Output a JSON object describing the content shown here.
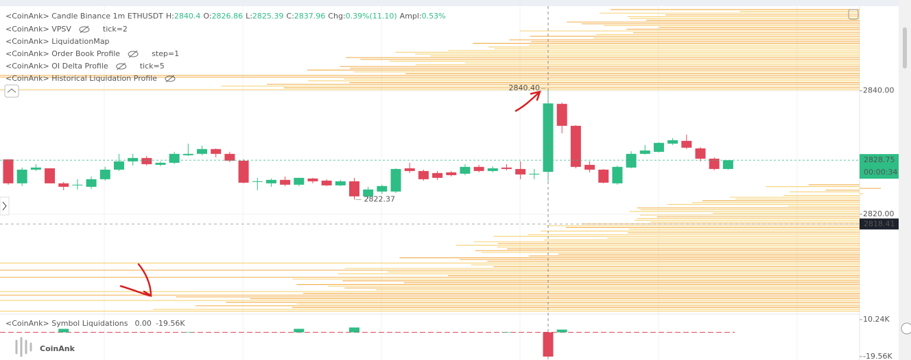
{
  "chart_data": [
    {
      "type": "candlestick",
      "header": {
        "title": "<CoinAnk> Candle  Binance 1m ETHUSDT",
        "fields": [
          [
            "H:",
            "2840.4"
          ],
          [
            "O:",
            "2826.86"
          ],
          [
            "L:",
            "2825.39"
          ],
          [
            "C:",
            "2837.96"
          ],
          [
            "Chg:",
            "0.39%(11.10)"
          ],
          [
            "Ampl:",
            "0.53%"
          ]
        ]
      },
      "indicators": [
        {
          "name": "<CoinAnk> VPSV",
          "hidden": true,
          "param": "tick=2"
        },
        {
          "name": "<CoinAnk> LiquidationMap"
        },
        {
          "name": "<CoinAnk> Order Book Profile",
          "hidden": true,
          "param": "step=1"
        },
        {
          "name": "<CoinAnk> OI Delta Profile",
          "hidden": true,
          "param": "tick=5"
        },
        {
          "name": "<CoinAnk> Historical Liquidation Profile",
          "hidden": true
        }
      ],
      "open": [
        2828.89,
        2825.0,
        2827.22,
        2827.44,
        2825.0,
        2824.67,
        2824.44,
        2825.67,
        2827.22,
        2828.56,
        2829.11,
        2828.0,
        2828.33,
        2829.56,
        2829.78,
        2830.56,
        2829.78,
        2828.67,
        2825.22,
        2825.0,
        2825.56,
        2824.78,
        2825.78,
        2825.44,
        2824.67,
        2825.33,
        2822.89,
        2823.67,
        2823.67,
        2827.44,
        2827.0,
        2826.67,
        2826.78,
        2826.56,
        2827.67,
        2827.0,
        2827.56,
        2827.33,
        2826.44,
        2826.86,
        2837.89,
        2834.33,
        2828.0,
        2827.22,
        2825.0,
        2827.56,
        2829.78,
        2830.11,
        2831.44,
        2831.89,
        2830.67,
        2829.0,
        2827.33
      ],
      "high": [
        2828.89,
        2827.56,
        2828.11,
        2827.44,
        2825.22,
        2825.67,
        2826.11,
        2827.67,
        2829.78,
        2829.78,
        2829.44,
        2828.56,
        2830.11,
        2831.44,
        2831.11,
        2830.67,
        2830.11,
        2828.89,
        2825.89,
        2825.78,
        2826.11,
        2825.89,
        2825.89,
        2825.67,
        2825.56,
        2825.89,
        2824.44,
        2824.78,
        2827.44,
        2828.33,
        2827.22,
        2827.0,
        2827.0,
        2828.11,
        2828.0,
        2827.78,
        2828.11,
        2828.56,
        2827.33,
        2840.4,
        2838.11,
        2834.44,
        2828.56,
        2827.33,
        2827.89,
        2830.22,
        2831.22,
        2831.67,
        2832.33,
        2832.89,
        2830.89,
        2829.22,
        2828.75
      ],
      "low": [
        2824.78,
        2824.56,
        2827.0,
        2825.0,
        2823.89,
        2824.0,
        2824.11,
        2825.44,
        2827.0,
        2827.89,
        2827.89,
        2827.78,
        2828.11,
        2829.44,
        2829.56,
        2829.22,
        2828.44,
        2825.0,
        2823.89,
        2824.44,
        2824.56,
        2824.56,
        2825.0,
        2824.56,
        2824.56,
        2822.37,
        2822.56,
        2823.33,
        2823.44,
        2826.67,
        2825.44,
        2825.56,
        2826.11,
        2826.33,
        2826.78,
        2826.78,
        2827.11,
        2825.67,
        2825.67,
        2825.39,
        2833.11,
        2827.44,
        2826.78,
        2825.0,
        2824.78,
        2827.44,
        2829.67,
        2830.0,
        2831.22,
        2830.56,
        2828.56,
        2827.11,
        2827.22
      ],
      "close": [
        2825.0,
        2827.22,
        2827.56,
        2825.0,
        2824.44,
        2824.78,
        2825.67,
        2827.22,
        2828.56,
        2829.11,
        2828.11,
        2828.33,
        2829.78,
        2829.78,
        2830.56,
        2829.78,
        2828.67,
        2825.11,
        2825.33,
        2825.56,
        2824.78,
        2825.89,
        2825.33,
        2824.67,
        2825.33,
        2822.89,
        2824.0,
        2824.56,
        2827.33,
        2827.0,
        2825.67,
        2825.89,
        2826.33,
        2827.67,
        2827.0,
        2827.44,
        2827.33,
        2826.44,
        2826.56,
        2837.96,
        2834.33,
        2827.67,
        2827.22,
        2825.11,
        2827.67,
        2829.78,
        2830.33,
        2831.56,
        2832.0,
        2830.78,
        2829.0,
        2827.33,
        2828.75
      ],
      "up_color": "#2ebd85",
      "down_color": "#e0475a",
      "ylim": [
        2803.9,
        2853.4
      ],
      "yticks": [
        {
          "value": 2840,
          "label": "2840.00"
        },
        {
          "value": 2820,
          "label": "2820.00"
        }
      ],
      "high_marker": {
        "value": 2840.4,
        "label": "2840.40"
      },
      "low_marker": 2822.37,
      "last_price": 2828.75,
      "countdown": "00:00:34",
      "crosshair_price": 2818.41,
      "watermark": "CoinAnk"
    },
    {
      "type": "bar",
      "title": "<CoinAnk> Symbol Liquidations",
      "legend_values": [
        "0.00",
        "-19.56K"
      ],
      "values": [
        0,
        0,
        0,
        0,
        2800,
        0,
        0,
        0,
        0,
        0,
        0,
        0,
        0,
        300,
        0,
        0,
        0,
        0,
        0,
        0,
        0,
        2800,
        0,
        0,
        0,
        3900,
        0,
        0,
        0,
        0,
        0,
        0,
        0,
        0,
        0,
        0,
        300,
        0,
        0,
        -19560,
        2200,
        0,
        0,
        0,
        0,
        0,
        0,
        0,
        0,
        0,
        0,
        0,
        0
      ],
      "ylim": [
        -22320,
        14100
      ],
      "yticks": [
        {
          "value": 10240,
          "label": "10.24K"
        },
        {
          "value": -19560,
          "label": "-19.56K"
        }
      ]
    }
  ]
}
